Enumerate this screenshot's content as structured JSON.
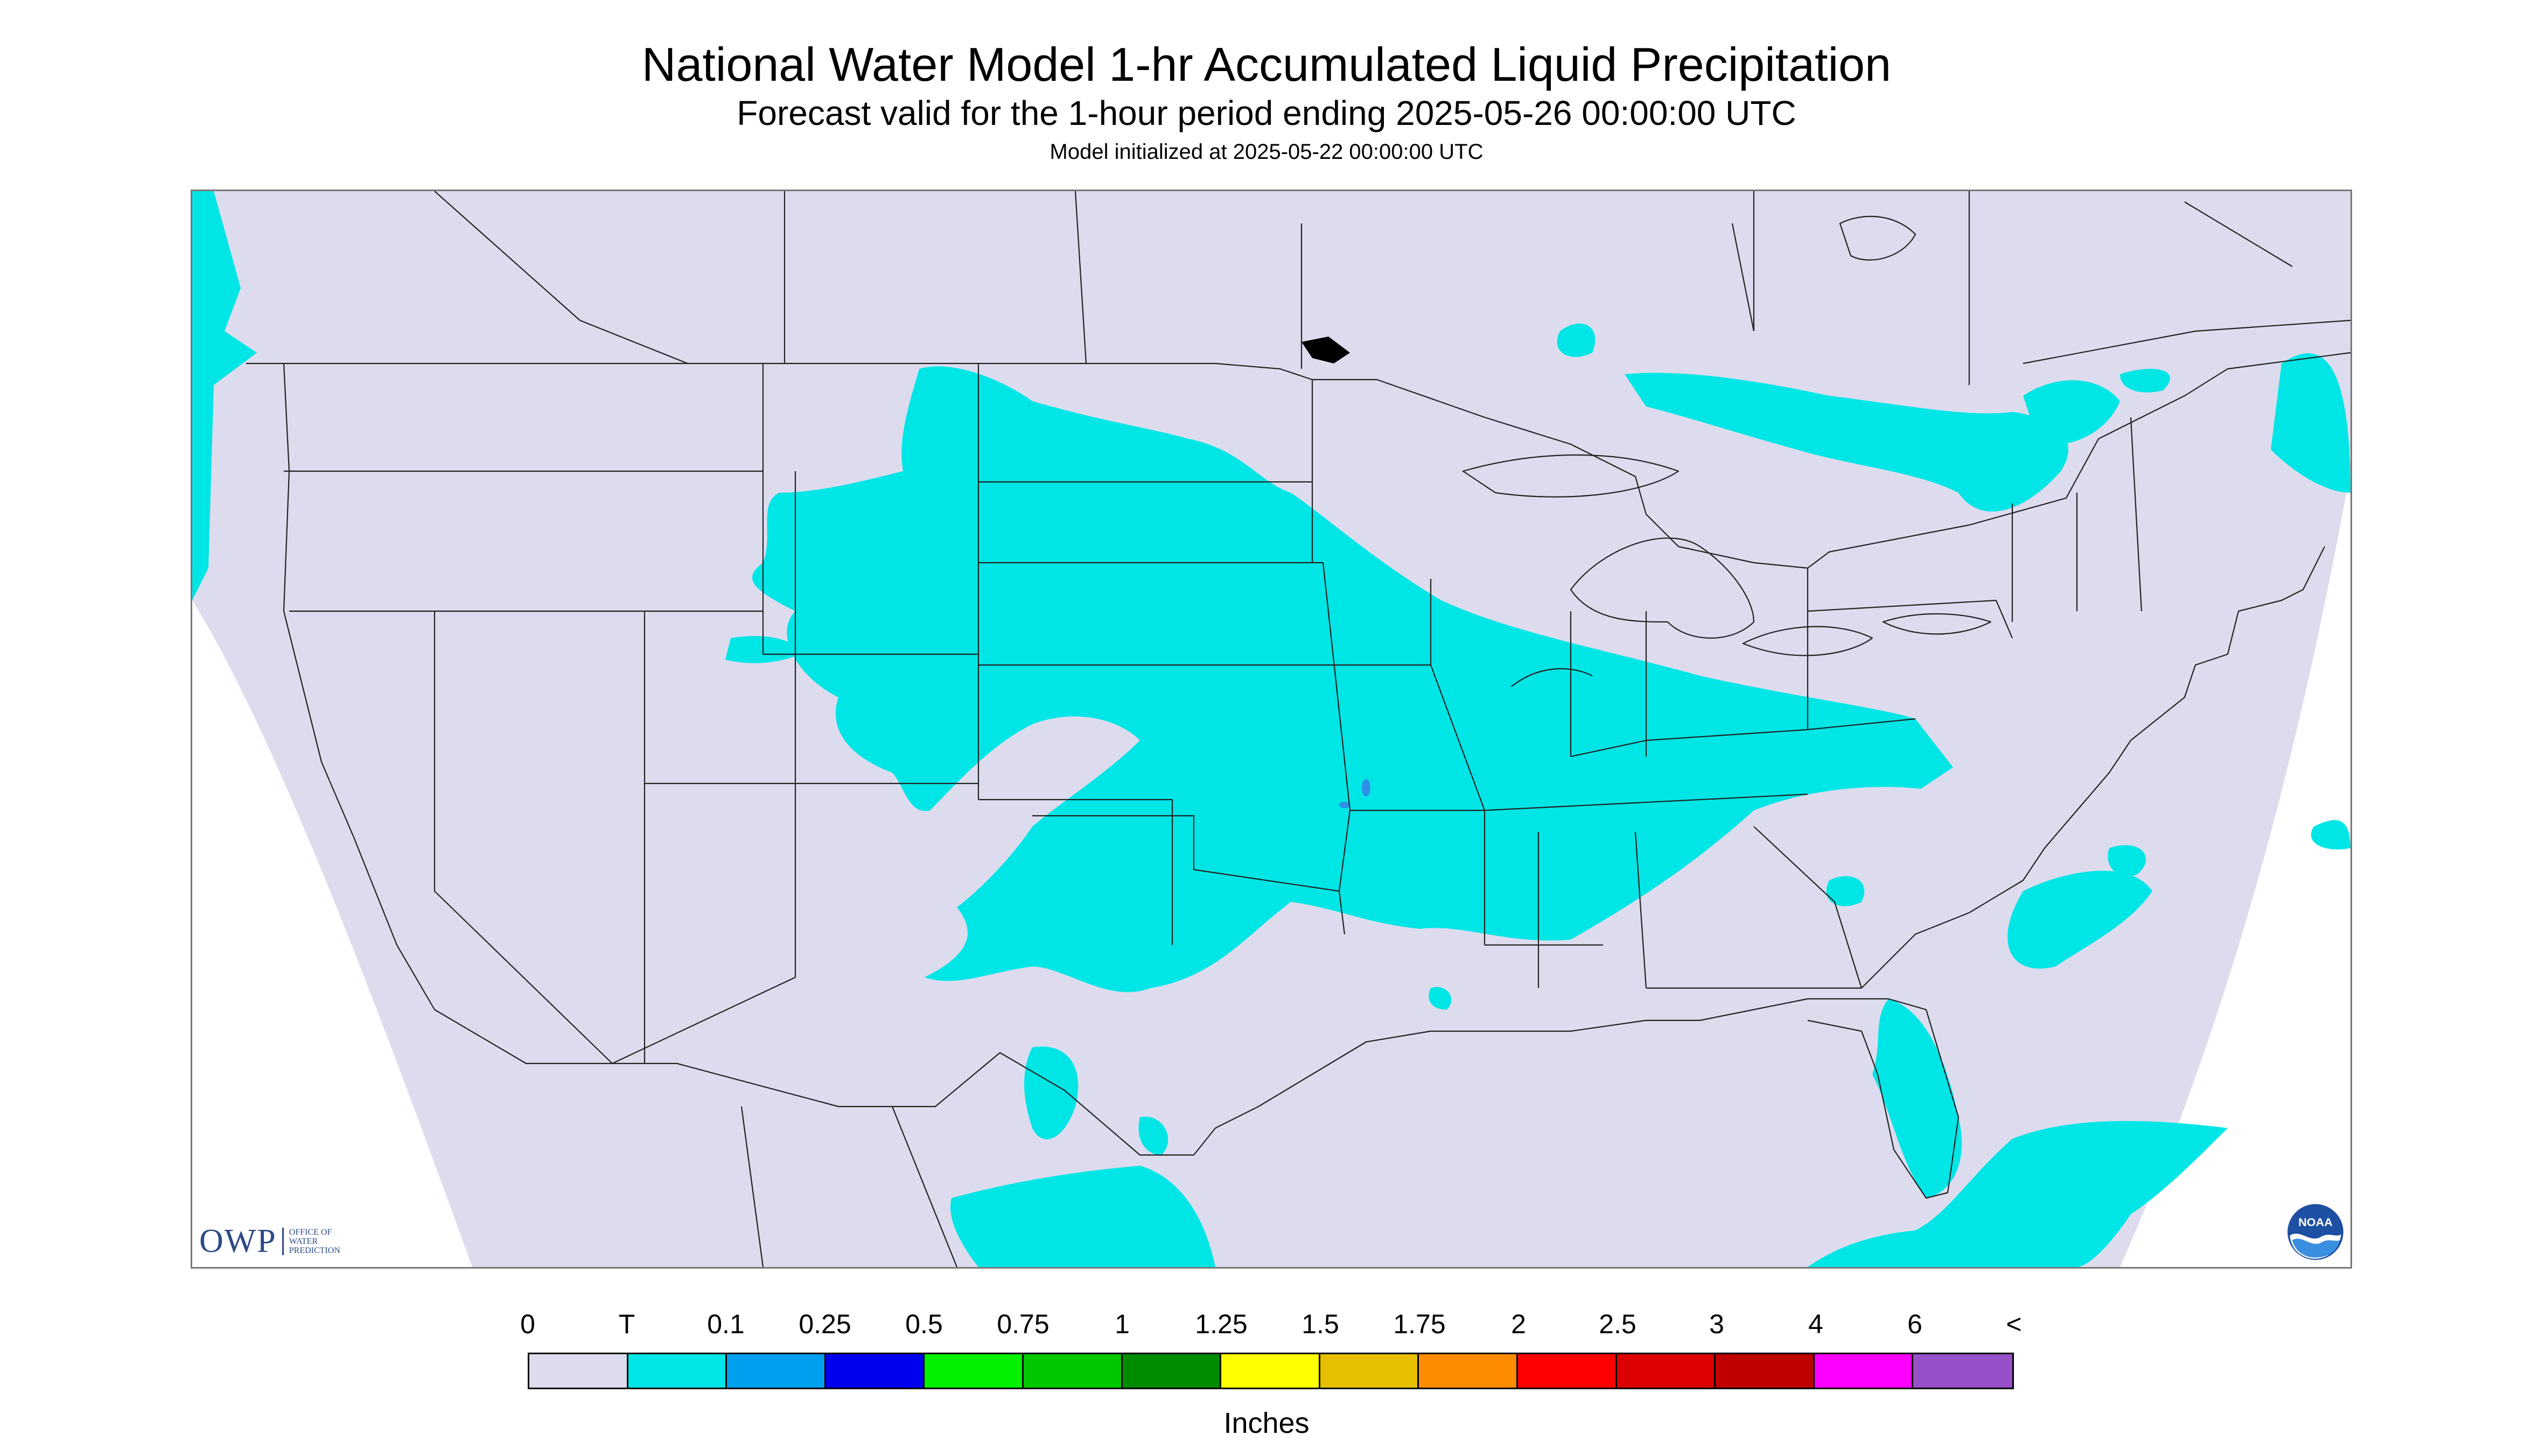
{
  "header": {
    "title": "National Water Model 1-hr Accumulated Liquid Precipitation",
    "subtitle": "Forecast valid for the 1-hour period ending 2025-05-26 00:00:00 UTC",
    "init_text": "Model initialized at 2025-05-22 00:00:00 UTC"
  },
  "map": {
    "background_color": "#dcdcee",
    "precip_color": "#00e6e6",
    "boundary_color": "#222222",
    "heavier_spot_color": "#2f8fe8",
    "icons": [
      "owp-logo",
      "noaa-logo"
    ]
  },
  "logos": {
    "owp_text": "OWP",
    "owp_sub": [
      "OFFICE OF",
      "WATER",
      "PREDICTION"
    ],
    "noaa_text": "NOAA"
  },
  "legend": {
    "tick_labels": [
      "0",
      "T",
      "0.1",
      "0.25",
      "0.5",
      "0.75",
      "1",
      "1.25",
      "1.5",
      "1.75",
      "2",
      "2.5",
      "3",
      "4",
      "6",
      "<"
    ],
    "colors": [
      "#dcdcee",
      "#00e6e6",
      "#00a0f0",
      "#0000f0",
      "#00f000",
      "#00c800",
      "#008c00",
      "#ffff00",
      "#e6c000",
      "#ff8c00",
      "#ff0000",
      "#dc0000",
      "#c00000",
      "#ff00ff",
      "#9650c8"
    ],
    "units": "Inches"
  }
}
